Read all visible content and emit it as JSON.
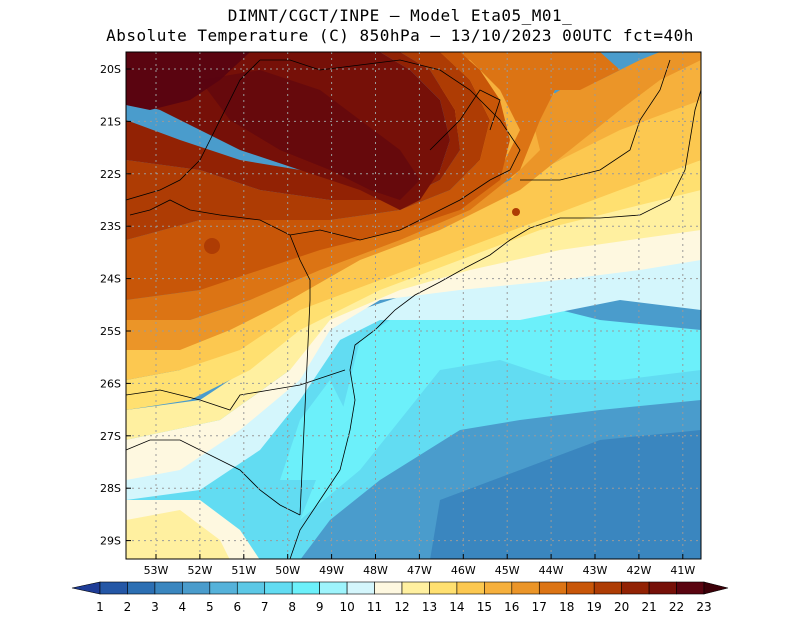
{
  "title_line1": "DIMNT/CGCT/INPE –  Model Eta05_M01_",
  "title_line2": "Absolute Temperature (C) 850hPa –  13/10/2023 00UTC fct=40h",
  "lat_ticks": [
    "20S",
    "21S",
    "22S",
    "23S",
    "24S",
    "25S",
    "26S",
    "27S",
    "28S",
    "29S"
  ],
  "lon_ticks": [
    "53W",
    "52W",
    "51W",
    "50W",
    "49W",
    "48W",
    "47W",
    "46W",
    "45W",
    "44W",
    "43W",
    "42W",
    "41W"
  ],
  "colorbar": {
    "labels": [
      "1",
      "2",
      "3",
      "4",
      "5",
      "6",
      "7",
      "8",
      "9",
      "10",
      "11",
      "12",
      "13",
      "14",
      "15",
      "16",
      "17",
      "18",
      "19",
      "20",
      "21",
      "22",
      "23"
    ],
    "colors": [
      "#1e3c96",
      "#2457a6",
      "#2c6fb3",
      "#3a86bf",
      "#4a9ccc",
      "#55b2da",
      "#5cc8e6",
      "#62dcf2",
      "#6cf0fa",
      "#9ef4fc",
      "#d4f6fc",
      "#fef8e0",
      "#fff0a0",
      "#ffe070",
      "#fcc850",
      "#f6b03c",
      "#eb9528",
      "#dc7414",
      "#c85608",
      "#ae3c04",
      "#922204",
      "#761008",
      "#5a0410",
      "#3c0008"
    ]
  }
}
